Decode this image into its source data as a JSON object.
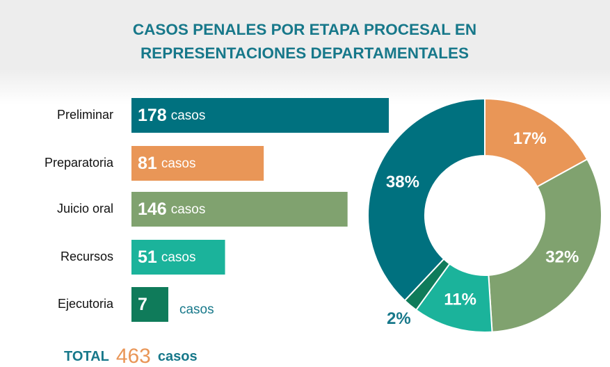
{
  "title": "CASOS PENALES POR ETAPA PROCESAL EN REPRESENTACIONES DEPARTAMENTALES",
  "chart_data": [
    {
      "type": "bar",
      "orientation": "horizontal",
      "categories": [
        "Preliminar",
        "Preparatoria",
        "Juicio oral",
        "Recursos",
        "Ejecutoria"
      ],
      "values": [
        178,
        81,
        146,
        51,
        7
      ],
      "unit": "casos",
      "colors": [
        "#00717f",
        "#e99657",
        "#80a26f",
        "#1bb39b",
        "#0f7b5a"
      ]
    },
    {
      "type": "pie",
      "donut": true,
      "categories": [
        "Preliminar",
        "Preparatoria",
        "Juicio oral",
        "Recursos",
        "Ejecutoria"
      ],
      "values": [
        38,
        17,
        32,
        11,
        2
      ],
      "value_labels": [
        "38%",
        "17%",
        "32%",
        "11%",
        "2%"
      ],
      "colors": [
        "#00717f",
        "#e99657",
        "#80a26f",
        "#1bb39b",
        "#0f7b5a"
      ]
    }
  ],
  "total": {
    "label": "TOTAL",
    "value": 463,
    "unit": "casos"
  }
}
